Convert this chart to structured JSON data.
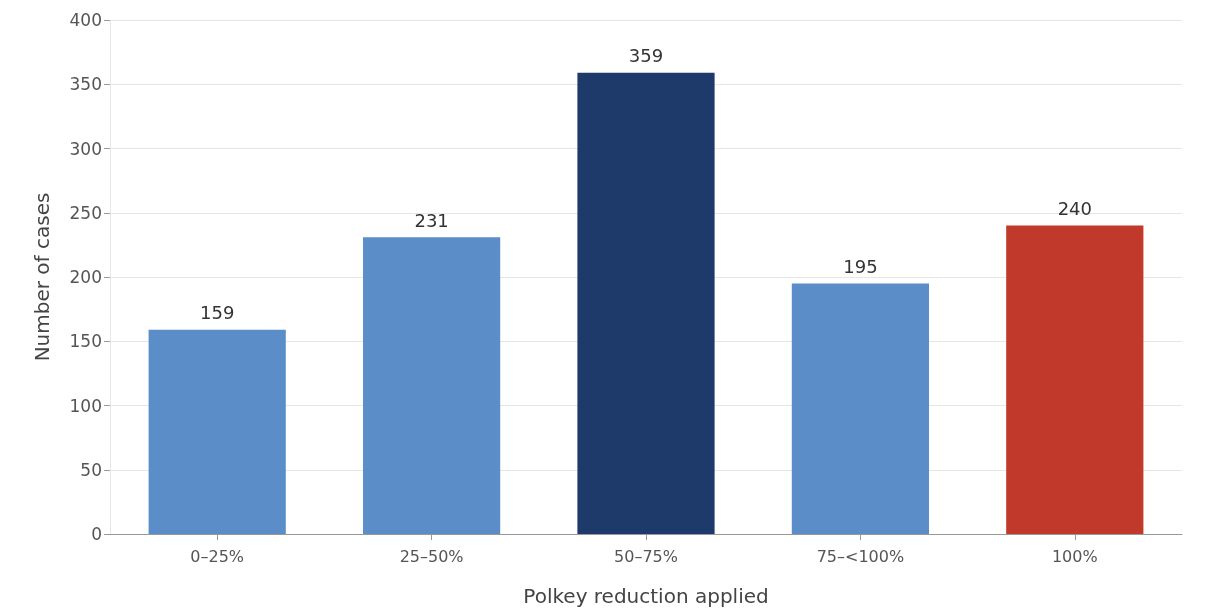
{
  "chart_data": {
    "type": "bar",
    "xlabel": "Polkey reduction applied",
    "ylabel": "Number of cases",
    "categories": [
      "0–25%",
      "25–50%",
      "50–75%",
      "75–<100%",
      "100%"
    ],
    "values": [
      159,
      231,
      359,
      195,
      240
    ],
    "colors": [
      "#5b8dc9",
      "#5b8dc9",
      "#1d3a6b",
      "#5b8dc9",
      "#c0392b"
    ],
    "ylim": [
      0,
      400
    ],
    "yticks": [
      0,
      50,
      100,
      150,
      200,
      250,
      300,
      350,
      400
    ],
    "grid": "y",
    "data_labels": true
  }
}
